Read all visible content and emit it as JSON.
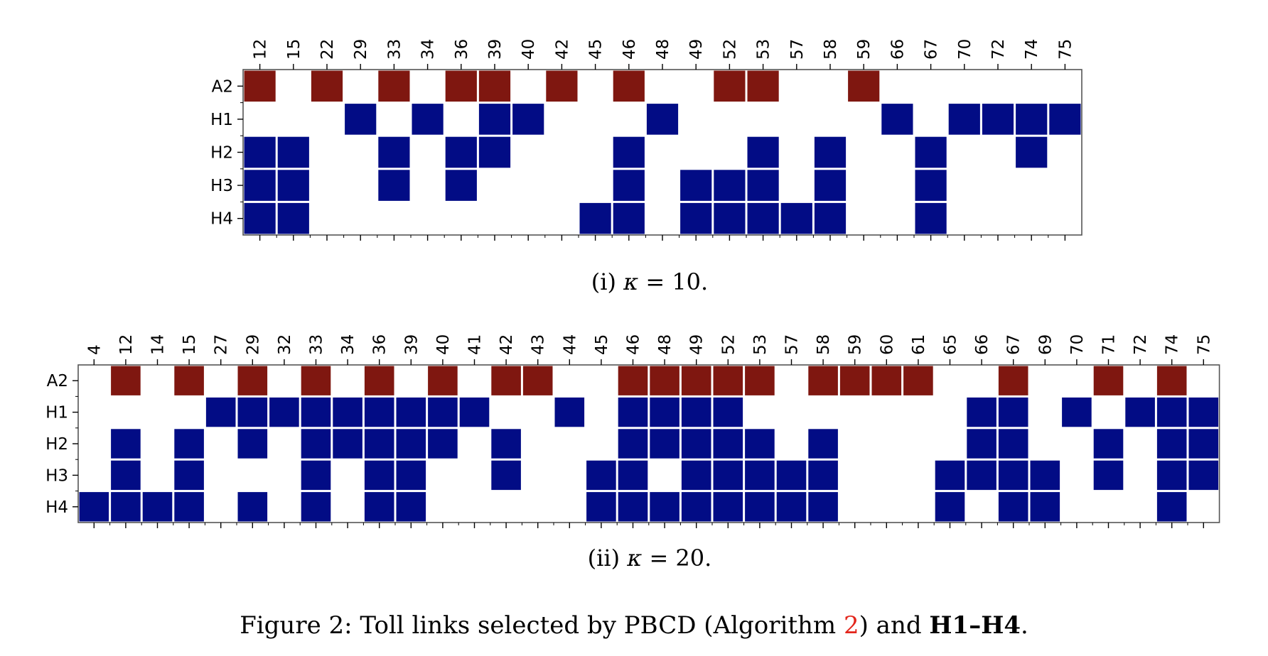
{
  "colors": {
    "a2": "#7f1710",
    "h": "#020c85",
    "frame": "#555555",
    "gap": "#ffffff"
  },
  "figure": {
    "caption_prefix": "Figure 2:",
    "caption_main": " Toll links selected by PBCD (Algorithm ",
    "caption_ref": "2",
    "caption_mid": ") and ",
    "caption_bold": "H1–H4",
    "caption_end": "."
  },
  "chart_data": [
    {
      "type": "heatmap",
      "caption_label": "(i) ",
      "caption_symbol": "κ",
      "caption_value": " = 10.",
      "rows": [
        "A2",
        "H1",
        "H2",
        "H3",
        "H4"
      ],
      "columns": [
        "12",
        "15",
        "22",
        "29",
        "33",
        "34",
        "36",
        "39",
        "40",
        "42",
        "45",
        "46",
        "48",
        "49",
        "52",
        "53",
        "57",
        "58",
        "59",
        "66",
        "67",
        "70",
        "72",
        "74",
        "75"
      ],
      "selected": {
        "A2": [
          "12",
          "22",
          "33",
          "36",
          "39",
          "42",
          "46",
          "52",
          "53",
          "59"
        ],
        "H1": [
          "29",
          "34",
          "39",
          "40",
          "48",
          "66",
          "70",
          "72",
          "74",
          "75"
        ],
        "H2": [
          "12",
          "15",
          "33",
          "36",
          "39",
          "46",
          "53",
          "58",
          "67",
          "74"
        ],
        "H3": [
          "12",
          "15",
          "33",
          "36",
          "46",
          "49",
          "52",
          "53",
          "58",
          "67"
        ],
        "H4": [
          "12",
          "15",
          "45",
          "46",
          "49",
          "52",
          "53",
          "57",
          "58",
          "67"
        ]
      }
    },
    {
      "type": "heatmap",
      "caption_label": "(ii) ",
      "caption_symbol": "κ",
      "caption_value": " = 20.",
      "rows": [
        "A2",
        "H1",
        "H2",
        "H3",
        "H4"
      ],
      "columns": [
        "4",
        "12",
        "14",
        "15",
        "27",
        "29",
        "32",
        "33",
        "34",
        "36",
        "39",
        "40",
        "41",
        "42",
        "43",
        "44",
        "45",
        "46",
        "48",
        "49",
        "52",
        "53",
        "57",
        "58",
        "59",
        "60",
        "61",
        "65",
        "66",
        "67",
        "69",
        "70",
        "71",
        "72",
        "74",
        "75"
      ],
      "selected": {
        "A2": [
          "12",
          "15",
          "29",
          "33",
          "36",
          "40",
          "42",
          "43",
          "46",
          "48",
          "49",
          "52",
          "53",
          "58",
          "59",
          "60",
          "61",
          "67",
          "71",
          "74"
        ],
        "H1": [
          "27",
          "29",
          "32",
          "33",
          "34",
          "36",
          "39",
          "40",
          "41",
          "44",
          "46",
          "48",
          "49",
          "52",
          "66",
          "67",
          "70",
          "72",
          "74",
          "75"
        ],
        "H2": [
          "12",
          "15",
          "29",
          "33",
          "34",
          "36",
          "39",
          "40",
          "42",
          "46",
          "48",
          "49",
          "52",
          "53",
          "58",
          "66",
          "67",
          "71",
          "74",
          "75"
        ],
        "H3": [
          "12",
          "15",
          "33",
          "36",
          "39",
          "42",
          "45",
          "46",
          "49",
          "52",
          "53",
          "57",
          "58",
          "65",
          "66",
          "67",
          "69",
          "71",
          "74",
          "75"
        ],
        "H4": [
          "4",
          "12",
          "14",
          "15",
          "29",
          "33",
          "36",
          "39",
          "45",
          "46",
          "48",
          "49",
          "52",
          "53",
          "57",
          "58",
          "65",
          "67",
          "69",
          "74"
        ]
      }
    }
  ]
}
